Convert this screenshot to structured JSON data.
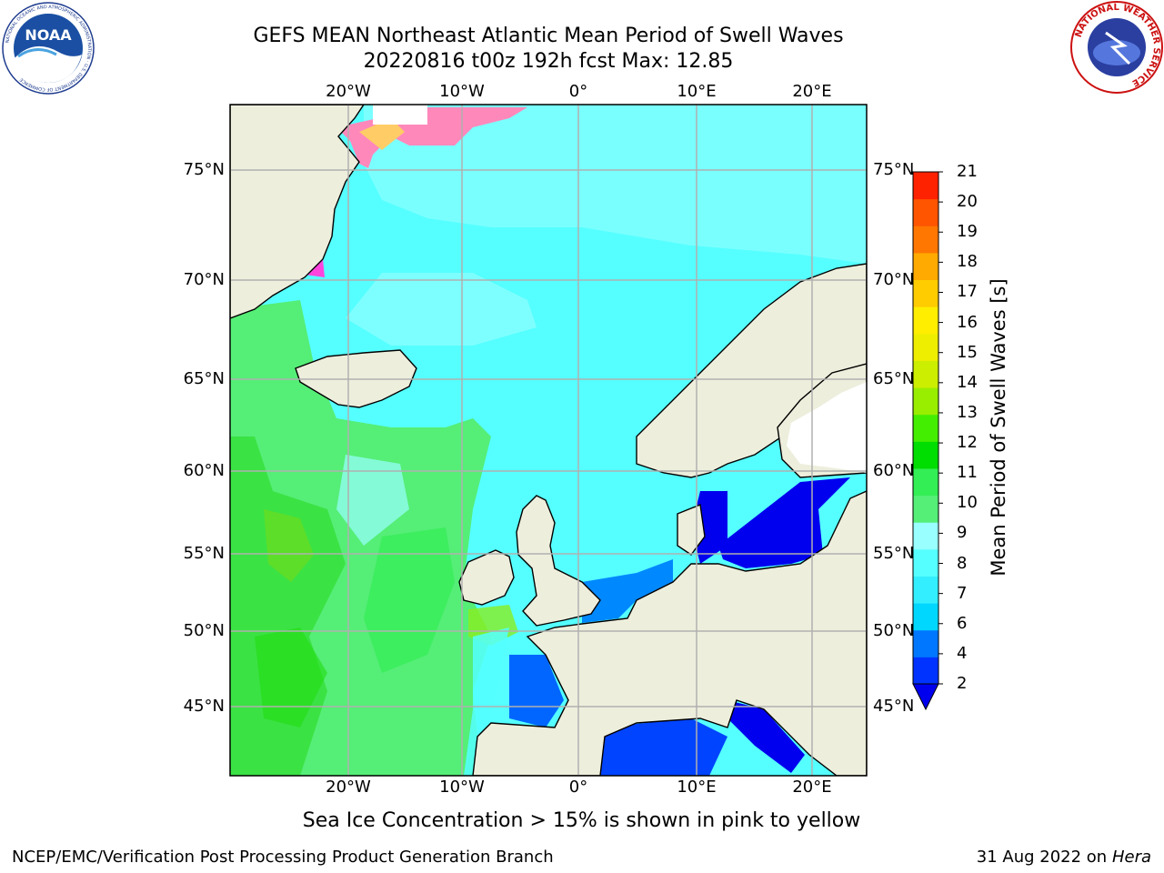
{
  "header": {
    "title_line1": "GEFS MEAN Northeast Atlantic Mean Period of Swell Waves",
    "title_line2": "20220816 t00z 192h fcst   Max: 12.85"
  },
  "logos": {
    "left": "NOAA",
    "left_ring": "NATIONAL OCEANIC AND ATMOSPHERIC ADMINISTRATION · U.S. DEPARTMENT OF COMMERCE",
    "right_ring": "NATIONAL WEATHER SERVICE"
  },
  "map": {
    "lon_labels": [
      "20°W",
      "10°W",
      "0°",
      "10°E",
      "20°E"
    ],
    "lat_labels": [
      "75°N",
      "70°N",
      "65°N",
      "60°N",
      "55°N",
      "50°N",
      "45°N"
    ],
    "land_color": "#eeeedd",
    "coast_color": "#000000",
    "grid_color": "#b0b0b0"
  },
  "colorbar": {
    "title": "Mean Period of Swell Waves [s]",
    "ticks": [
      "2",
      "4",
      "6",
      "7",
      "8",
      "9",
      "10",
      "11",
      "12",
      "13",
      "14",
      "15",
      "16",
      "17",
      "18",
      "19",
      "20",
      "21"
    ],
    "colors": [
      "#0033ff",
      "#0077ff",
      "#00d7ff",
      "#33eeff",
      "#55ffff",
      "#99ffff",
      "#55ee77",
      "#33ee55",
      "#00dd00",
      "#44ee00",
      "#99ee00",
      "#ccee00",
      "#eeee00",
      "#ffee00",
      "#ffcc00",
      "#ffaa00",
      "#ff7700",
      "#ff5500",
      "#ff2200"
    ],
    "extend_color": "#0000ee"
  },
  "note": "Sea Ice Concentration > 15% is shown in pink to yellow",
  "footer": {
    "left": "NCEP/EMC/Verification Post Processing Product Generation Branch",
    "right_date": "31 Aug 2022 on",
    "right_host": "Hera"
  }
}
